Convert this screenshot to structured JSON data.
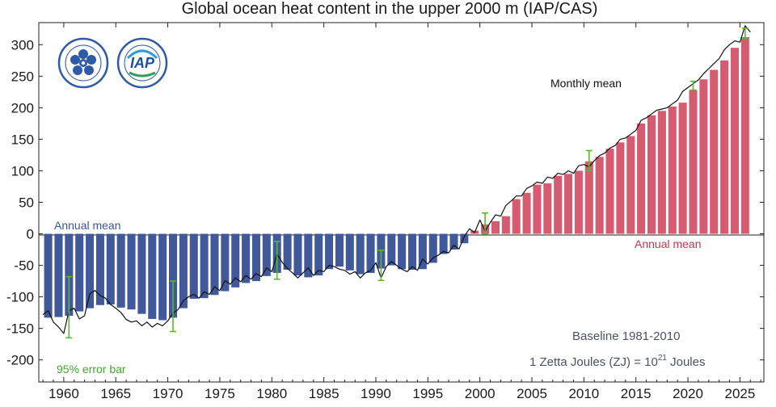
{
  "chart_data": {
    "type": "bar",
    "title": "Global ocean heat content in the upper 2000 m (IAP/CAS)",
    "xlim": [
      1957.6,
      2027.3
    ],
    "ylim": [
      -235,
      335
    ],
    "grid": false,
    "x_ticks": [
      1960,
      1965,
      1970,
      1975,
      1980,
      1985,
      1990,
      1995,
      2000,
      2005,
      2010,
      2015,
      2020,
      2025
    ],
    "y_ticks": [
      300,
      250,
      200,
      150,
      100,
      50,
      0,
      -50,
      -100,
      -150,
      -200
    ],
    "colors": {
      "positive": "#d65a70",
      "negative": "#41599b",
      "error_bar": "#5cb82e",
      "monthly": "#111111"
    },
    "years": [
      1958,
      1959,
      1960,
      1961,
      1962,
      1963,
      1964,
      1965,
      1966,
      1967,
      1968,
      1969,
      1970,
      1971,
      1972,
      1973,
      1974,
      1975,
      1976,
      1977,
      1978,
      1979,
      1980,
      1981,
      1982,
      1983,
      1984,
      1985,
      1986,
      1987,
      1988,
      1989,
      1990,
      1991,
      1992,
      1993,
      1994,
      1995,
      1996,
      1997,
      1998,
      1999,
      2000,
      2001,
      2002,
      2003,
      2004,
      2005,
      2006,
      2007,
      2008,
      2009,
      2010,
      2011,
      2012,
      2013,
      2014,
      2015,
      2016,
      2017,
      2018,
      2019,
      2020,
      2021,
      2022,
      2023,
      2024,
      2025
    ],
    "annual_mean": [
      -133,
      -132,
      -130,
      -123,
      -118,
      -113,
      -112,
      -117,
      -120,
      -127,
      -135,
      -137,
      -133,
      -118,
      -103,
      -102,
      -97,
      -91,
      -85,
      -78,
      -75,
      -67,
      -62,
      -57,
      -66,
      -69,
      -66,
      -56,
      -52,
      -58,
      -64,
      -62,
      -55,
      -50,
      -56,
      -57,
      -56,
      -46,
      -32,
      -25,
      -15,
      5,
      15,
      20,
      28,
      55,
      65,
      78,
      80,
      92,
      95,
      100,
      115,
      122,
      135,
      145,
      155,
      175,
      188,
      195,
      202,
      208,
      228,
      245,
      260,
      275,
      295,
      312
    ],
    "monthly_mean": [
      [
        1958.0,
        -128
      ],
      [
        1958.5,
        -122
      ],
      [
        1959.0,
        -140
      ],
      [
        1959.5,
        -148
      ],
      [
        1960.0,
        -158
      ],
      [
        1960.5,
        -122
      ],
      [
        1961.0,
        -118
      ],
      [
        1961.5,
        -135
      ],
      [
        1962.0,
        -130
      ],
      [
        1962.5,
        -95
      ],
      [
        1963.0,
        -90
      ],
      [
        1963.5,
        -98
      ],
      [
        1964.0,
        -102
      ],
      [
        1964.5,
        -112
      ],
      [
        1965.0,
        -118
      ],
      [
        1965.5,
        -125
      ],
      [
        1966.0,
        -136
      ],
      [
        1966.5,
        -140
      ],
      [
        1967.0,
        -138
      ],
      [
        1967.5,
        -146
      ],
      [
        1968.0,
        -140
      ],
      [
        1968.5,
        -148
      ],
      [
        1969.0,
        -142
      ],
      [
        1969.5,
        -146
      ],
      [
        1970.0,
        -138
      ],
      [
        1970.5,
        -126
      ],
      [
        1971.0,
        -120
      ],
      [
        1971.5,
        -106
      ],
      [
        1972.0,
        -100
      ],
      [
        1972.5,
        -96
      ],
      [
        1973.0,
        -102
      ],
      [
        1973.5,
        -92
      ],
      [
        1974.0,
        -96
      ],
      [
        1974.5,
        -84
      ],
      [
        1975.0,
        -90
      ],
      [
        1975.5,
        -74
      ],
      [
        1976.0,
        -80
      ],
      [
        1976.5,
        -70
      ],
      [
        1977.0,
        -76
      ],
      [
        1977.5,
        -66
      ],
      [
        1978.0,
        -72
      ],
      [
        1978.5,
        -63
      ],
      [
        1979.0,
        -68
      ],
      [
        1979.5,
        -54
      ],
      [
        1980.0,
        -60
      ],
      [
        1980.5,
        -32
      ],
      [
        1981.0,
        -45
      ],
      [
        1981.5,
        -55
      ],
      [
        1982.0,
        -62
      ],
      [
        1982.5,
        -70
      ],
      [
        1983.0,
        -62
      ],
      [
        1983.5,
        -54
      ],
      [
        1984.0,
        -66
      ],
      [
        1984.5,
        -58
      ],
      [
        1985.0,
        -60
      ],
      [
        1985.5,
        -50
      ],
      [
        1986.0,
        -52
      ],
      [
        1986.5,
        -56
      ],
      [
        1987.0,
        -58
      ],
      [
        1987.5,
        -64
      ],
      [
        1988.0,
        -60
      ],
      [
        1988.5,
        -70
      ],
      [
        1989.0,
        -62
      ],
      [
        1989.5,
        -58
      ],
      [
        1990.0,
        -46
      ],
      [
        1990.5,
        -70
      ],
      [
        1991.0,
        -52
      ],
      [
        1991.5,
        -44
      ],
      [
        1992.0,
        -50
      ],
      [
        1992.5,
        -56
      ],
      [
        1993.0,
        -60
      ],
      [
        1993.5,
        -52
      ],
      [
        1994.0,
        -58
      ],
      [
        1994.5,
        -40
      ],
      [
        1995.0,
        -48
      ],
      [
        1995.5,
        -38
      ],
      [
        1996.0,
        -34
      ],
      [
        1996.5,
        -28
      ],
      [
        1997.0,
        -30
      ],
      [
        1997.5,
        -18
      ],
      [
        1998.0,
        -24
      ],
      [
        1998.5,
        -4
      ],
      [
        1999.0,
        8
      ],
      [
        1999.5,
        2
      ],
      [
        2000.0,
        22
      ],
      [
        2000.5,
        4
      ],
      [
        2001.0,
        18
      ],
      [
        2001.5,
        30
      ],
      [
        2002.0,
        28
      ],
      [
        2002.5,
        45
      ],
      [
        2003.0,
        52
      ],
      [
        2003.5,
        60
      ],
      [
        2004.0,
        60
      ],
      [
        2004.5,
        72
      ],
      [
        2005.0,
        76
      ],
      [
        2005.5,
        82
      ],
      [
        2006.0,
        80
      ],
      [
        2006.5,
        90
      ],
      [
        2007.0,
        88
      ],
      [
        2007.5,
        96
      ],
      [
        2008.0,
        94
      ],
      [
        2008.5,
        100
      ],
      [
        2009.0,
        96
      ],
      [
        2009.5,
        108
      ],
      [
        2010.0,
        110
      ],
      [
        2010.5,
        106
      ],
      [
        2011.0,
        116
      ],
      [
        2011.5,
        124
      ],
      [
        2012.0,
        128
      ],
      [
        2012.5,
        136
      ],
      [
        2013.0,
        140
      ],
      [
        2013.5,
        150
      ],
      [
        2014.0,
        152
      ],
      [
        2014.5,
        158
      ],
      [
        2015.0,
        164
      ],
      [
        2015.5,
        180
      ],
      [
        2016.0,
        184
      ],
      [
        2016.5,
        190
      ],
      [
        2017.0,
        196
      ],
      [
        2017.5,
        198
      ],
      [
        2018.0,
        200
      ],
      [
        2018.5,
        206
      ],
      [
        2019.0,
        212
      ],
      [
        2019.5,
        226
      ],
      [
        2020.0,
        232
      ],
      [
        2020.5,
        238
      ],
      [
        2021.0,
        244
      ],
      [
        2021.5,
        254
      ],
      [
        2022.0,
        262
      ],
      [
        2022.5,
        270
      ],
      [
        2023.0,
        278
      ],
      [
        2023.5,
        292
      ],
      [
        2024.0,
        300
      ],
      [
        2024.5,
        306
      ],
      [
        2025.0,
        304
      ],
      [
        2025.5,
        330
      ],
      [
        2026.0,
        320
      ]
    ],
    "error_bars": [
      {
        "x": 1960.5,
        "y": -116,
        "low": -165,
        "high": -68
      },
      {
        "x": 1970.5,
        "y": -115,
        "low": -155,
        "high": -75
      },
      {
        "x": 1980.5,
        "y": -42,
        "low": -72,
        "high": -12
      },
      {
        "x": 1990.5,
        "y": -50,
        "low": -74,
        "high": -26
      },
      {
        "x": 2000.5,
        "y": 15,
        "low": 0,
        "high": 33
      },
      {
        "x": 2010.5,
        "y": 115,
        "low": 100,
        "high": 132
      },
      {
        "x": 2020.5,
        "y": 235,
        "low": 228,
        "high": 242
      },
      {
        "x": 2025.5,
        "y": 318,
        "low": 310,
        "high": 326
      }
    ],
    "annotations": {
      "annual_mean_left": "Annual mean",
      "annual_mean_right": "Annual mean",
      "monthly_mean": "Monthly mean",
      "error_bar": "95% error bar",
      "baseline": "Baseline 1981-2010",
      "unit_prefix": "1 Zetta Joules (ZJ) = 10",
      "unit_exp": "21",
      "unit_suffix": " Joules"
    },
    "logos": [
      "Chinese Academy of Sciences",
      "IAP"
    ]
  }
}
